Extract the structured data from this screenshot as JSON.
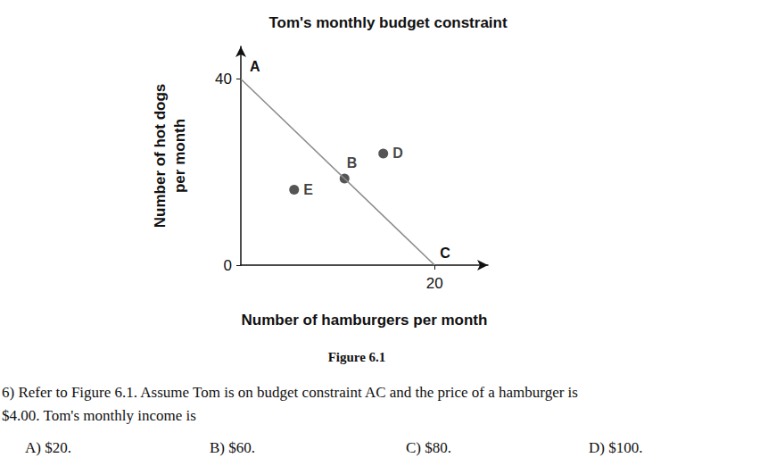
{
  "chart_data": {
    "type": "line",
    "title": "Tom's monthly budget constraint",
    "xlabel": "Number of hamburgers per month",
    "ylabel": "Number of hot dogs\nper month",
    "xlim": [
      0,
      25.5
    ],
    "ylim": [
      0,
      47
    ],
    "xticks": [
      20
    ],
    "yticks": [
      0,
      40
    ],
    "grid": false,
    "series": [
      {
        "type": "line",
        "color": "#8c8c8c",
        "line_style": "solid",
        "x": [
          0,
          20
        ],
        "values": [
          40,
          0
        ],
        "labels": [
          "A",
          "C"
        ]
      },
      {
        "type": "scatter",
        "color": "#2b2b2b",
        "marker": "circle",
        "x": [
          10.7,
          14.7,
          5.5
        ],
        "values": [
          18.6,
          24,
          16.2
        ],
        "labels": [
          "B",
          "D",
          "E"
        ]
      }
    ]
  },
  "caption": "Figure 6.1",
  "question": {
    "lines": [
      "6) Refer to Figure 6.1. Assume Tom is on budget constraint AC and the price of a hamburger is",
      "$4.00. Tom's monthly income is"
    ],
    "options": [
      "A) $20.",
      "B) $60.",
      "C) $80.",
      "D) $100."
    ]
  }
}
